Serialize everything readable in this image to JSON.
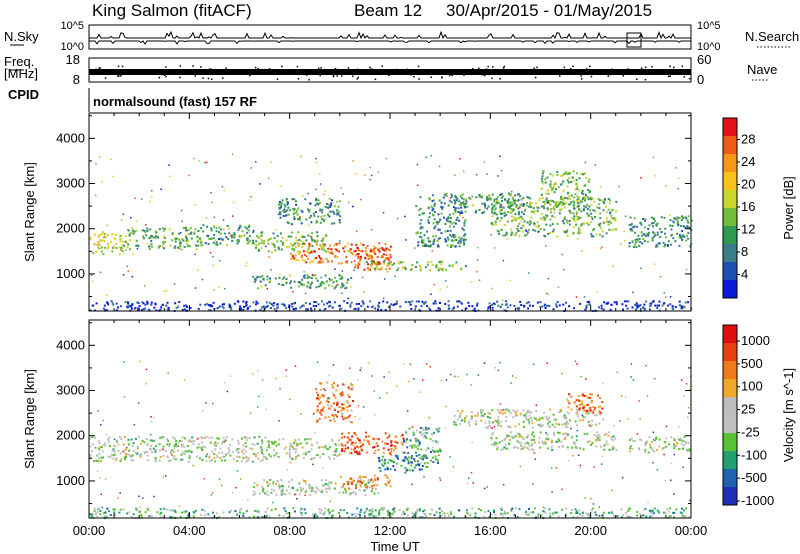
{
  "header": {
    "station": "King Salmon (fitACF)",
    "beam": "Beam 12",
    "date_range": "30/Apr/2015 - 01/May/2015"
  },
  "top_panels": {
    "nsky": {
      "left_label": "N.Sky",
      "right_label": "N.Search",
      "left_ticks": [
        "10^5",
        "10^0"
      ],
      "right_ticks": [
        "10^5",
        "10^0"
      ]
    },
    "freq": {
      "left_label_1": "Freq.",
      "left_label_2": "[MHz]",
      "right_label": "Nave",
      "left_ticks": [
        "18",
        "8"
      ],
      "right_ticks": [
        "60",
        "0"
      ]
    },
    "cpid_label": "CPID",
    "mode_text": "normalsound (fast) 157 RF"
  },
  "chart_data": [
    {
      "type": "heatmap",
      "title": "",
      "xlabel": "Time UT",
      "ylabel": "Slant Range [km]",
      "x_ticks": [
        "00:00",
        "04:00",
        "08:00",
        "12:00",
        "16:00",
        "20:00",
        "00:00"
      ],
      "xlim_hours": [
        0,
        24
      ],
      "ylim": [
        180,
        4560
      ],
      "y_ticks": [
        1000,
        2000,
        3000,
        4000
      ],
      "colorbar": {
        "label": "Power [dB]",
        "ticks": [
          "4",
          "8",
          "12",
          "16",
          "20",
          "24",
          "28"
        ],
        "colors": [
          "#0a1ad8",
          "#1f4fb2",
          "#3a7e8a",
          "#2f9a4e",
          "#6fbd3a",
          "#c9d62c",
          "#f6c21b",
          "#f7971a",
          "#f05a18",
          "#e01414"
        ]
      },
      "regions": [
        {
          "t0": 0.0,
          "t1": 1.5,
          "r0": 1450,
          "r1": 1950,
          "level": 0.55
        },
        {
          "t0": 1.5,
          "t1": 4.5,
          "r0": 1550,
          "r1": 2050,
          "level": 0.4
        },
        {
          "t0": 4.5,
          "t1": 6.5,
          "r0": 1650,
          "r1": 2100,
          "level": 0.35
        },
        {
          "t0": 6.5,
          "t1": 9.5,
          "r0": 1500,
          "r1": 1950,
          "level": 0.45
        },
        {
          "t0": 8.0,
          "t1": 12.0,
          "r0": 1250,
          "r1": 1700,
          "level": 0.8
        },
        {
          "t0": 10.5,
          "t1": 12.0,
          "r0": 1100,
          "r1": 1600,
          "level": 0.9
        },
        {
          "t0": 6.5,
          "t1": 10.5,
          "r0": 700,
          "r1": 1000,
          "level": 0.35
        },
        {
          "t0": 11.0,
          "t1": 15.0,
          "r0": 1100,
          "r1": 1300,
          "level": 0.45
        },
        {
          "t0": 13.0,
          "t1": 15.0,
          "r0": 1600,
          "r1": 2800,
          "level": 0.3
        },
        {
          "t0": 14.5,
          "t1": 17.5,
          "r0": 2350,
          "r1": 2800,
          "level": 0.35
        },
        {
          "t0": 16.0,
          "t1": 21.0,
          "r0": 1850,
          "r1": 2700,
          "level": 0.4
        },
        {
          "t0": 18.0,
          "t1": 20.0,
          "r0": 2500,
          "r1": 3300,
          "level": 0.45
        },
        {
          "t0": 21.5,
          "t1": 24.0,
          "r0": 1600,
          "r1": 2300,
          "level": 0.3
        },
        {
          "t0": 7.5,
          "t1": 10.0,
          "r0": 2100,
          "r1": 2700,
          "level": 0.3
        },
        {
          "t0": 0.0,
          "t1": 24.0,
          "r0": 200,
          "r1": 420,
          "level": 0.1
        }
      ]
    },
    {
      "type": "heatmap",
      "title": "",
      "xlabel": "Time UT",
      "ylabel": "Slant Range [km]",
      "x_ticks": [
        "00:00",
        "04:00",
        "08:00",
        "12:00",
        "16:00",
        "20:00",
        "00:00"
      ],
      "xlim_hours": [
        0,
        24
      ],
      "ylim": [
        180,
        4560
      ],
      "y_ticks": [
        1000,
        2000,
        3000,
        4000
      ],
      "colorbar": {
        "label": "Velocity [m s^-1]",
        "ticks": [
          "1000",
          "500",
          "100",
          "25",
          "-25",
          "-100",
          "-500",
          "-1000"
        ],
        "colors": [
          "#1f2fb8",
          "#1f63b0",
          "#22a070",
          "#57c234",
          "#c0c0c0",
          "#bdbdbd",
          "#f0a82a",
          "#f07a1a",
          "#e84010",
          "#dd0f0f"
        ]
      },
      "regions": [
        {
          "t0": 0.0,
          "t1": 7.0,
          "r0": 1450,
          "r1": 2000,
          "level": 0.45
        },
        {
          "t0": 7.0,
          "t1": 10.0,
          "r0": 1500,
          "r1": 1950,
          "level": 0.47
        },
        {
          "t0": 10.0,
          "t1": 12.5,
          "r0": 1600,
          "r1": 2100,
          "level": 0.8
        },
        {
          "t0": 11.5,
          "t1": 13.5,
          "r0": 1200,
          "r1": 1600,
          "level": 0.2
        },
        {
          "t0": 12.5,
          "t1": 14.0,
          "r0": 1400,
          "r1": 2200,
          "level": 0.3
        },
        {
          "t0": 6.5,
          "t1": 11.5,
          "r0": 700,
          "r1": 1050,
          "level": 0.45
        },
        {
          "t0": 10.0,
          "t1": 12.0,
          "r0": 850,
          "r1": 1150,
          "level": 0.75
        },
        {
          "t0": 14.5,
          "t1": 20.5,
          "r0": 2200,
          "r1": 2600,
          "level": 0.47
        },
        {
          "t0": 16.0,
          "t1": 21.0,
          "r0": 1700,
          "r1": 2100,
          "level": 0.45
        },
        {
          "t0": 19.0,
          "t1": 20.5,
          "r0": 2500,
          "r1": 2950,
          "level": 0.8
        },
        {
          "t0": 21.5,
          "t1": 24.0,
          "r0": 1650,
          "r1": 2000,
          "level": 0.47
        },
        {
          "t0": 9.0,
          "t1": 10.5,
          "r0": 2300,
          "r1": 3200,
          "level": 0.75
        },
        {
          "t0": 0.0,
          "t1": 24.0,
          "r0": 200,
          "r1": 420,
          "level": 0.35
        }
      ]
    }
  ]
}
